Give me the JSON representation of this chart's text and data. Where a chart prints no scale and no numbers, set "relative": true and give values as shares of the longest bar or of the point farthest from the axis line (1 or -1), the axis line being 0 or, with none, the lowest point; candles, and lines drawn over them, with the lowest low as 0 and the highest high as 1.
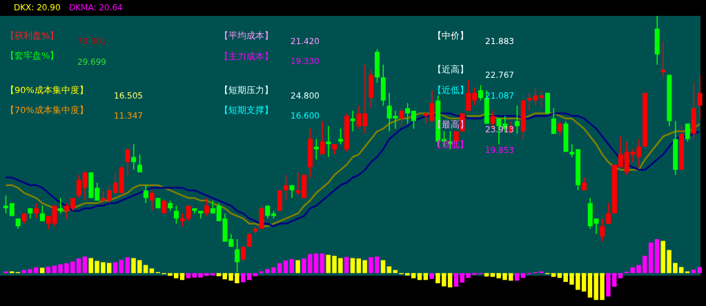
{
  "chart_data": [
    {
      "type": "candlestick",
      "relative": true,
      "categories": [
        null,
        null,
        null,
        null,
        null,
        null,
        null,
        null,
        null,
        null,
        null,
        null,
        null,
        null,
        null,
        null,
        null,
        null,
        null,
        null,
        null,
        null,
        null,
        null,
        null,
        null,
        null,
        null,
        null,
        null,
        null,
        null,
        null,
        null,
        null,
        null,
        null,
        null,
        null,
        null,
        null,
        null,
        null,
        null,
        null,
        null,
        null,
        null,
        null,
        null,
        null,
        null,
        null,
        null,
        null,
        null,
        null,
        null,
        null,
        null,
        null,
        null,
        null,
        null,
        null,
        null,
        null,
        null,
        null,
        null,
        null,
        null,
        null,
        null,
        null,
        null,
        null,
        null,
        null,
        null,
        null,
        null,
        null,
        null,
        null,
        null,
        null,
        null,
        null,
        null,
        null,
        null,
        null,
        null,
        null,
        null,
        null,
        null,
        null,
        null,
        null,
        null,
        null,
        null,
        null,
        null,
        null,
        null,
        null,
        null,
        null,
        null,
        null,
        null,
        null
      ],
      "ohlc": [
        [
          0.26,
          0.3,
          0.23,
          0.25
        ],
        [
          0.27,
          0.27,
          0.22,
          0.22
        ],
        [
          0.21,
          0.21,
          0.17,
          0.18
        ],
        [
          0.2,
          0.23,
          0.19,
          0.23
        ],
        [
          0.25,
          0.25,
          0.21,
          0.23
        ],
        [
          0.23,
          0.27,
          0.21,
          0.25
        ],
        [
          0.23,
          0.26,
          0.2,
          0.2
        ],
        [
          0.19,
          0.22,
          0.17,
          0.22
        ],
        [
          0.19,
          0.26,
          0.18,
          0.26
        ],
        [
          0.25,
          0.29,
          0.23,
          0.24
        ],
        [
          0.24,
          0.27,
          0.21,
          0.26
        ],
        [
          0.25,
          0.29,
          0.24,
          0.29
        ],
        [
          0.3,
          0.38,
          0.29,
          0.36
        ],
        [
          0.33,
          0.39,
          0.28,
          0.39
        ],
        [
          0.39,
          0.39,
          0.29,
          0.29
        ],
        [
          0.33,
          0.35,
          0.28,
          0.28
        ],
        [
          0.28,
          0.32,
          0.27,
          0.29
        ],
        [
          0.28,
          0.34,
          0.27,
          0.32
        ],
        [
          0.31,
          0.39,
          0.3,
          0.35
        ],
        [
          0.31,
          0.41,
          0.3,
          0.41
        ],
        [
          0.43,
          0.48,
          0.38,
          0.48
        ],
        [
          0.45,
          0.5,
          0.4,
          0.43
        ],
        [
          0.42,
          0.46,
          0.39,
          0.39
        ],
        [
          0.32,
          0.34,
          0.27,
          0.29
        ],
        [
          0.28,
          0.32,
          0.24,
          0.31
        ],
        [
          0.29,
          0.29,
          0.25,
          0.25
        ],
        [
          0.23,
          0.28,
          0.23,
          0.28
        ],
        [
          0.27,
          0.28,
          0.24,
          0.25
        ],
        [
          0.24,
          0.26,
          0.19,
          0.21
        ],
        [
          0.2,
          0.23,
          0.18,
          0.21
        ],
        [
          0.21,
          0.26,
          0.2,
          0.26
        ],
        [
          0.25,
          0.25,
          0.23,
          0.24
        ],
        [
          0.24,
          0.24,
          0.21,
          0.23
        ],
        [
          0.23,
          0.29,
          0.22,
          0.26
        ],
        [
          0.25,
          0.28,
          0.23,
          0.23
        ],
        [
          0.26,
          0.27,
          0.2,
          0.2
        ],
        [
          0.21,
          0.23,
          0.12,
          0.12
        ],
        [
          0.13,
          0.15,
          0.1,
          0.1
        ],
        [
          0.09,
          0.13,
          0,
          0.04
        ],
        [
          0.05,
          0.1,
          0.05,
          0.1
        ],
        [
          0.1,
          0.15,
          0.1,
          0.15
        ],
        [
          0.16,
          0.18,
          0.15,
          0.17
        ],
        [
          0.17,
          0.26,
          0.17,
          0.25
        ],
        [
          0.26,
          0.26,
          0.21,
          0.22
        ],
        [
          0.23,
          0.24,
          0.21,
          0.22
        ],
        [
          0.24,
          0.32,
          0.24,
          0.32
        ],
        [
          0.32,
          0.38,
          0.28,
          0.34
        ],
        [
          0.34,
          0.34,
          0.29,
          0.32
        ],
        [
          0.31,
          0.39,
          0.3,
          0.32
        ],
        [
          0.29,
          0.38,
          0.29,
          0.38
        ],
        [
          0.41,
          0.56,
          0.37,
          0.52
        ],
        [
          0.49,
          0.52,
          0.44,
          0.48
        ],
        [
          0.46,
          0.59,
          0.46,
          0.51
        ],
        [
          0.51,
          0.57,
          0.45,
          0.5
        ],
        [
          0.48,
          0.5,
          0.46,
          0.5
        ],
        [
          0.52,
          0.56,
          0.5,
          0.51
        ],
        [
          0.48,
          0.62,
          0.47,
          0.61
        ],
        [
          0.6,
          0.63,
          0.55,
          0.59
        ],
        [
          0.57,
          0.65,
          0.56,
          0.62
        ],
        [
          0.57,
          0.81,
          0.54,
          0.62
        ],
        [
          0.68,
          0.79,
          0.64,
          0.77
        ],
        [
          0.86,
          0.87,
          0.74,
          0.76
        ],
        [
          0.76,
          0.81,
          0.65,
          0.67
        ],
        [
          0.65,
          0.7,
          0.55,
          0.6
        ],
        [
          0.61,
          0.63,
          0.56,
          0.6
        ],
        [
          0.6,
          0.64,
          0.57,
          0.63
        ],
        [
          0.64,
          0.66,
          0.58,
          0.62
        ],
        [
          0.63,
          0.63,
          0.56,
          0.59
        ],
        null,
        [
          0.61,
          0.62,
          0.58,
          0.62
        ],
        [
          0.59,
          0.71,
          0.59,
          0.66
        ],
        [
          0.67,
          0.69,
          0.49,
          0.51
        ],
        [
          0.52,
          0.55,
          0.49,
          0.51
        ],
        [
          0.51,
          0.55,
          0.48,
          0.5
        ],
        [
          0.51,
          0.55,
          0.49,
          0.55
        ],
        [
          0.55,
          0.62,
          0.55,
          0.62
        ],
        [
          0.63,
          0.75,
          0.63,
          0.7
        ],
        [
          0.67,
          0.72,
          0.65,
          0.7
        ],
        [
          0.71,
          0.73,
          0.67,
          0.68
        ],
        [
          0.68,
          0.71,
          0.58,
          0.58
        ],
        [
          0.58,
          0.63,
          0.56,
          0.61
        ],
        [
          0.6,
          0.6,
          0.5,
          0.57
        ],
        [
          0.58,
          0.61,
          0.55,
          0.56
        ],
        [
          0.55,
          0.59,
          0.54,
          0.57
        ],
        [
          0.59,
          0.65,
          0.54,
          0.57
        ],
        [
          0.55,
          0.67,
          0.52,
          0.67
        ],
        [
          0.67,
          0.7,
          0.63,
          0.68
        ],
        [
          0.67,
          0.72,
          0.65,
          0.69
        ],
        [
          0.68,
          0.71,
          0.64,
          0.69
        ],
        [
          0.7,
          0.7,
          0.62,
          0.62
        ],
        [
          0.6,
          0.64,
          0.54,
          0.54
        ],
        [
          0.55,
          0.59,
          0.53,
          0.58
        ],
        [
          0.58,
          0.59,
          0.47,
          0.47
        ],
        [
          0.47,
          0.5,
          0.45,
          0.46
        ],
        [
          0.48,
          0.48,
          0.32,
          0.34
        ],
        [
          0.32,
          0.37,
          0.32,
          0.35
        ],
        [
          0.27,
          0.29,
          0.17,
          0.18
        ],
        [
          0.21,
          0.21,
          0.15,
          0.19
        ],
        [
          0.14,
          0.21,
          0.12,
          0.18
        ],
        [
          0.19,
          0.27,
          0.19,
          0.23
        ],
        [
          0.23,
          0.42,
          0.23,
          0.42
        ],
        [
          0.41,
          0.53,
          0.41,
          0.46
        ],
        [
          0.39,
          0.51,
          0.38,
          0.47
        ],
        [
          0.46,
          0.48,
          0.43,
          0.47
        ],
        [
          0.45,
          0.52,
          0.41,
          0.49
        ],
        [
          0.49,
          0.7,
          0.49,
          0.7
        ],
        null,
        [
          0.95,
          1,
          0.81,
          0.85
        ],
        [
          0.78,
          0.9,
          0.76,
          0.79
        ],
        [
          0.77,
          0.77,
          0.57,
          0.59
        ],
        [
          0.52,
          0.59,
          0.38,
          0.4
        ],
        [
          0.4,
          0.57,
          0.4,
          0.54
        ],
        [
          0.58,
          0.58,
          0.51,
          0.52
        ],
        [
          0.54,
          0.74,
          0.52,
          0.64
        ],
        [
          0.65,
          0.77,
          0.6,
          0.7
        ]
      ],
      "series": [
        {
          "type": "line",
          "color": "#808000",
          "values": [
            0.34,
            0.34,
            0.33,
            0.31,
            0.3,
            0.29,
            0.27,
            0.26,
            0.25,
            0.24,
            0.24,
            0.25,
            0.26,
            0.27,
            0.27,
            0.27,
            0.28,
            0.28,
            0.29,
            0.3,
            0.31,
            0.33,
            0.34,
            0.34,
            0.34,
            0.34,
            0.33,
            0.32,
            0.31,
            0.3,
            0.29,
            0.29,
            0.28,
            0.28,
            0.27,
            0.26,
            0.25,
            0.23,
            0.22,
            0.21,
            0.19,
            0.19,
            0.18,
            0.18,
            0.19,
            0.2,
            0.21,
            0.22,
            0.23,
            0.26,
            0.28,
            0.31,
            0.33,
            0.35,
            0.38,
            0.4,
            0.42,
            0.45,
            0.46,
            0.49,
            0.52,
            0.55,
            0.56,
            0.58,
            0.59,
            0.6,
            0.6,
            0.61,
            0.62,
            0.62,
            0.62,
            0.62,
            0.61,
            0.6,
            0.6,
            0.6,
            0.61,
            0.61,
            0.61,
            0.62,
            0.61,
            0.6,
            0.6,
            0.6,
            0.6,
            0.6,
            0.61,
            0.62,
            0.62,
            0.62,
            0.62,
            0.61,
            0.6,
            0.6,
            0.58,
            0.56,
            0.53,
            0.5,
            0.46,
            0.43,
            0.41,
            0.4,
            0.4,
            0.4,
            0.4,
            0.44,
            0.47,
            0.5,
            0.53,
            0.54,
            0.55,
            0.55,
            0.55,
            0.56,
            0.58
          ]
        },
        {
          "type": "line",
          "color": "#000080",
          "values": [
            0.37,
            0.37,
            0.36,
            0.35,
            0.34,
            0.34,
            0.33,
            0.31,
            0.29,
            0.27,
            0.26,
            0.24,
            0.24,
            0.25,
            0.25,
            0.26,
            0.26,
            0.27,
            0.27,
            0.28,
            0.29,
            0.3,
            0.31,
            0.32,
            0.33,
            0.33,
            0.33,
            0.33,
            0.33,
            0.33,
            0.32,
            0.32,
            0.31,
            0.3,
            0.29,
            0.28,
            0.27,
            0.26,
            0.24,
            0.23,
            0.21,
            0.2,
            0.19,
            0.19,
            0.18,
            0.19,
            0.19,
            0.2,
            0.21,
            0.22,
            0.25,
            0.26,
            0.28,
            0.3,
            0.32,
            0.34,
            0.35,
            0.37,
            0.38,
            0.4,
            0.43,
            0.45,
            0.48,
            0.52,
            0.54,
            0.56,
            0.57,
            0.59,
            0.6,
            0.61,
            0.61,
            0.62,
            0.62,
            0.62,
            0.61,
            0.61,
            0.6,
            0.6,
            0.6,
            0.61,
            0.61,
            0.61,
            0.61,
            0.61,
            0.61,
            0.6,
            0.6,
            0.61,
            0.61,
            0.61,
            0.62,
            0.62,
            0.62,
            0.61,
            0.61,
            0.6,
            0.58,
            0.56,
            0.53,
            0.5,
            0.47,
            0.44,
            0.42,
            0.41,
            0.4,
            0.4,
            0.42,
            0.44,
            0.46,
            0.49,
            0.52,
            0.53,
            0.53,
            0.54,
            0.55
          ]
        }
      ],
      "annotations": [
        "DKX: 20.90",
        "DKMA: 20.64",
        "【获利盘%】",
        "70.301",
        "【套牢盘%】",
        "29.699",
        "【90%成本集中度】",
        "16.505",
        "【70%成本集中度】",
        "11.347",
        "【平均成本】",
        "21.420",
        "【主力成本】",
        "19.330",
        "【短期压力】",
        "24.800",
        "【短期支撑】",
        "16.600",
        "【中价】",
        "21.883",
        "【近高】",
        "22.767",
        "【近低】",
        "21.087",
        "【最高】",
        "23.913",
        "【最低】",
        "19.853"
      ]
    },
    {
      "type": "bar",
      "relative": true,
      "categories": [
        null,
        null,
        null,
        null,
        null,
        null,
        null,
        null,
        null,
        null,
        null,
        null,
        null,
        null,
        null,
        null,
        null,
        null,
        null,
        null,
        null,
        null,
        null,
        null,
        null,
        null,
        null,
        null,
        null,
        null,
        null,
        null,
        null,
        null,
        null,
        null,
        null,
        null,
        null,
        null,
        null,
        null,
        null,
        null,
        null,
        null,
        null,
        null,
        null,
        null,
        null,
        null,
        null,
        null,
        null,
        null,
        null,
        null,
        null,
        null,
        null,
        null,
        null,
        null,
        null,
        null,
        null,
        null,
        null,
        null,
        null,
        null,
        null,
        null,
        null,
        null,
        null,
        null,
        null,
        null,
        null,
        null,
        null,
        null,
        null,
        null,
        null,
        null,
        null,
        null,
        null,
        null,
        null,
        null,
        null,
        null,
        null,
        null,
        null,
        null,
        null,
        null,
        null,
        null,
        null,
        null,
        null,
        null,
        null,
        null,
        null,
        null,
        null,
        null,
        null
      ],
      "values": [
        0.05,
        0.05,
        0.03,
        0.09,
        0.12,
        0.17,
        0.16,
        0.19,
        0.22,
        0.26,
        0.29,
        0.34,
        0.43,
        0.49,
        0.44,
        0.36,
        0.32,
        0.3,
        0.32,
        0.39,
        0.47,
        0.44,
        0.38,
        0.24,
        0.14,
        0.03,
        -0.03,
        -0.08,
        -0.15,
        -0.2,
        -0.15,
        -0.13,
        -0.13,
        -0.08,
        -0.07,
        -0.09,
        -0.18,
        -0.22,
        -0.3,
        -0.27,
        -0.2,
        -0.09,
        0.05,
        0.12,
        0.17,
        0.29,
        0.37,
        0.41,
        0.38,
        0.43,
        0.56,
        0.58,
        0.58,
        0.54,
        0.51,
        0.44,
        0.48,
        0.44,
        0.43,
        0.38,
        0.47,
        0.49,
        0.38,
        0.2,
        0.09,
        -0.01,
        -0.07,
        -0.15,
        -0.2,
        -0.2,
        -0.17,
        -0.3,
        -0.39,
        -0.42,
        -0.4,
        -0.28,
        -0.14,
        -0.05,
        -0.01,
        -0.1,
        -0.11,
        -0.15,
        -0.2,
        -0.22,
        -0.22,
        -0.14,
        -0.03,
        0.01,
        0.05,
        -0.02,
        -0.11,
        -0.14,
        -0.26,
        -0.34,
        -0.49,
        -0.54,
        -0.72,
        -0.79,
        -0.79,
        -0.69,
        -0.4,
        -0.15,
        0.04,
        0.17,
        0.24,
        0.51,
        0.9,
        1,
        0.95,
        0.68,
        0.3,
        0.18,
        0.05,
        0.1,
        0.18
      ],
      "colors": [
        "#ff00ff",
        "#ffff00",
        "#ffff00",
        "#ff00ff",
        "#ff00ff",
        "#ff00ff",
        "#ffff00",
        "#ff00ff",
        "#ff00ff",
        "#ff00ff",
        "#ff00ff",
        "#ff00ff",
        "#ff00ff",
        "#ff00ff",
        "#ffff00",
        "#ffff00",
        "#ffff00",
        "#ffff00",
        "#ff00ff",
        "#ff00ff",
        "#ff00ff",
        "#ffff00",
        "#ffff00",
        "#ffff00",
        "#ffff00",
        "#ffff00",
        "#ffff00",
        "#ffff00",
        "#ffff00",
        "#ffff00",
        "#ff00ff",
        "#ff00ff",
        "#ff00ff",
        "#ff00ff",
        "#ff00ff",
        "#ffff00",
        "#ffff00",
        "#ffff00",
        "#ffff00",
        "#ff00ff",
        "#ff00ff",
        "#ff00ff",
        "#ff00ff",
        "#ff00ff",
        "#ff00ff",
        "#ff00ff",
        "#ff00ff",
        "#ff00ff",
        "#ffff00",
        "#ff00ff",
        "#ff00ff",
        "#ff00ff",
        "#ff00ff",
        "#ffff00",
        "#ffff00",
        "#ffff00",
        "#ff00ff",
        "#ffff00",
        "#ffff00",
        "#ffff00",
        "#ff00ff",
        "#ff00ff",
        "#ffff00",
        "#ffff00",
        "#ffff00",
        "#ffff00",
        "#ffff00",
        "#ffff00",
        "#ffff00",
        "#ffff00",
        "#ff00ff",
        "#ffff00",
        "#ffff00",
        "#ffff00",
        "#ff00ff",
        "#ff00ff",
        "#ff00ff",
        "#ff00ff",
        "#ff00ff",
        "#ffff00",
        "#ffff00",
        "#ffff00",
        "#ffff00",
        "#ffff00",
        "#ff00ff",
        "#ff00ff",
        "#ff00ff",
        "#ff00ff",
        "#ff00ff",
        "#ffff00",
        "#ffff00",
        "#ffff00",
        "#ffff00",
        "#ffff00",
        "#ffff00",
        "#ffff00",
        "#ffff00",
        "#ffff00",
        "#ffff00",
        "#ff00ff",
        "#ff00ff",
        "#ff00ff",
        "#ff00ff",
        "#ff00ff",
        "#ff00ff",
        "#ff00ff",
        "#ff00ff",
        "#ff00ff",
        "#ffff00",
        "#ffff00",
        "#ffff00",
        "#ffff00",
        "#ffff00",
        "#ff00ff",
        "#ff00ff"
      ]
    }
  ]
}
